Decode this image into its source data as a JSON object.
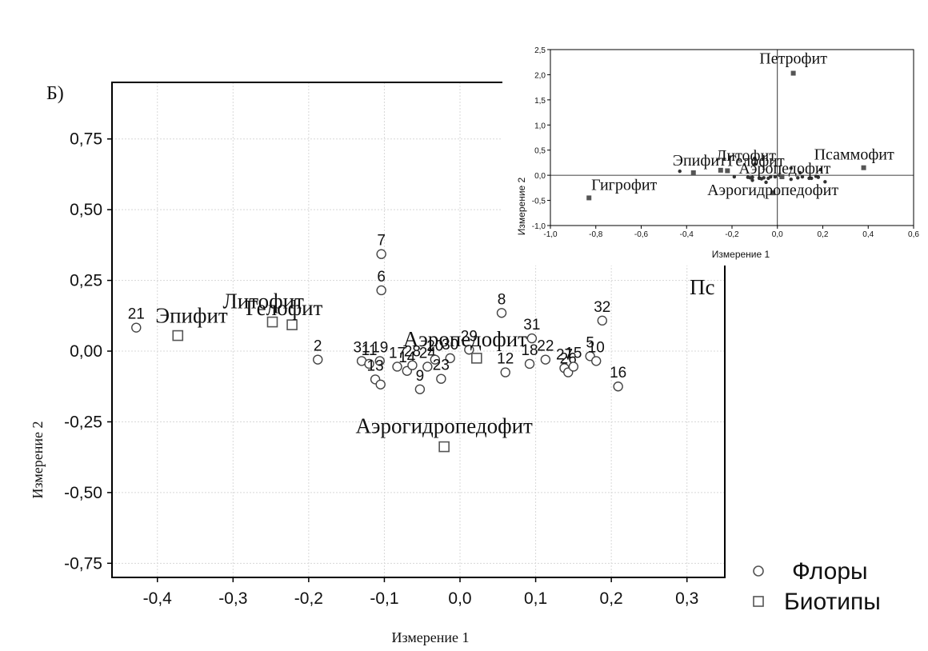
{
  "panel_label": "Б)",
  "main_chart": {
    "xlabel": "Измерение 1",
    "ylabel": "Измерение 2",
    "x_ticks": [
      {
        "v": -0.4,
        "label": "-0,4"
      },
      {
        "v": -0.3,
        "label": "-0,3"
      },
      {
        "v": -0.2,
        "label": "-0,2"
      },
      {
        "v": -0.1,
        "label": "-0,1"
      },
      {
        "v": 0.0,
        "label": "0,0"
      },
      {
        "v": 0.1,
        "label": "0,1"
      },
      {
        "v": 0.2,
        "label": "0,2"
      },
      {
        "v": 0.3,
        "label": "0,3"
      }
    ],
    "y_ticks": [
      {
        "v": 0.75,
        "label": "0,75"
      },
      {
        "v": 0.5,
        "label": "0,50"
      },
      {
        "v": 0.25,
        "label": "0,25"
      },
      {
        "v": 0.0,
        "label": "0,00"
      },
      {
        "v": -0.25,
        "label": "-0,25"
      },
      {
        "v": -0.5,
        "label": "-0,50"
      },
      {
        "v": -0.75,
        "label": "-0,75"
      }
    ],
    "legend": [
      {
        "label": "Флоры",
        "marker": "circle"
      },
      {
        "label": "Биотипы",
        "marker": "square"
      }
    ],
    "overflow_label": "Пс"
  },
  "chart_data": [
    {
      "type": "scatter",
      "xlabel": "Измерение 1",
      "ylabel": "Измерение 2",
      "xlim": [
        -0.46,
        0.35
      ],
      "ylim": [
        -0.8,
        0.95
      ],
      "grid": true,
      "legend_position": "bottom-right, outside plot",
      "series": [
        {
          "name": "Флоры",
          "marker": "circle",
          "points": [
            {
              "label": "21",
              "x": -0.428,
              "y": 0.083
            },
            {
              "label": "2",
              "x": -0.188,
              "y": -0.03
            },
            {
              "label": "31",
              "x": -0.13,
              "y": -0.035
            },
            {
              "label": "11",
              "x": -0.12,
              "y": -0.045
            },
            {
              "label": "19",
              "x": -0.106,
              "y": -0.035
            },
            {
              "label": "13",
              "x": -0.112,
              "y": -0.1
            },
            {
              "label": "",
              "x": -0.105,
              "y": -0.118
            },
            {
              "label": "7",
              "x": -0.104,
              "y": 0.343
            },
            {
              "label": "6",
              "x": -0.104,
              "y": 0.215
            },
            {
              "label": "17",
              "x": -0.083,
              "y": -0.055
            },
            {
              "label": "14",
              "x": -0.07,
              "y": -0.07
            },
            {
              "label": "28",
              "x": -0.063,
              "y": -0.05
            },
            {
              "label": "24",
              "x": -0.043,
              "y": -0.055
            },
            {
              "label": "9",
              "x": -0.053,
              "y": -0.135
            },
            {
              "label": "20",
              "x": -0.033,
              "y": -0.03
            },
            {
              "label": "30",
              "x": -0.013,
              "y": -0.025
            },
            {
              "label": "23",
              "x": -0.025,
              "y": -0.098
            },
            {
              "label": "29",
              "x": 0.012,
              "y": 0.005
            },
            {
              "label": "8",
              "x": 0.055,
              "y": 0.135
            },
            {
              "label": "12",
              "x": 0.06,
              "y": -0.075
            },
            {
              "label": "31",
              "x": 0.095,
              "y": 0.045
            },
            {
              "label": "18",
              "x": 0.092,
              "y": -0.045
            },
            {
              "label": "22",
              "x": 0.113,
              "y": -0.03
            },
            {
              "label": "27",
              "x": 0.138,
              "y": -0.06
            },
            {
              "label": "26",
              "x": 0.143,
              "y": -0.075
            },
            {
              "label": "15",
              "x": 0.15,
              "y": -0.055
            },
            {
              "label": "5",
              "x": 0.172,
              "y": -0.018
            },
            {
              "label": "10",
              "x": 0.18,
              "y": -0.035
            },
            {
              "label": "32",
              "x": 0.188,
              "y": 0.108
            },
            {
              "label": "16",
              "x": 0.209,
              "y": -0.125
            }
          ]
        },
        {
          "name": "Биотипы",
          "marker": "square",
          "points": [
            {
              "label": "Эпифит",
              "x": -0.373,
              "y": 0.055
            },
            {
              "label": "Литофит",
              "x": -0.248,
              "y": 0.103
            },
            {
              "label": "Гелофит",
              "x": -0.222,
              "y": 0.093
            },
            {
              "label": "Аэропедофит",
              "x": 0.022,
              "y": -0.025
            },
            {
              "label": "Аэрогидропедофит",
              "x": -0.021,
              "y": -0.338
            }
          ]
        }
      ]
    },
    {
      "type": "scatter",
      "xlabel": "Измерение 1",
      "ylabel": "Измерение 2",
      "xlim": [
        -1.0,
        0.6
      ],
      "ylim": [
        -1.0,
        2.5
      ],
      "grid": false,
      "x_ticks": [
        {
          "v": -1.0,
          "label": "-1,0"
        },
        {
          "v": -0.8,
          "label": "-0,8"
        },
        {
          "v": -0.6,
          "label": "-0,6"
        },
        {
          "v": -0.4,
          "label": "-0,4"
        },
        {
          "v": -0.2,
          "label": "-0,2"
        },
        {
          "v": 0.0,
          "label": "0,0"
        },
        {
          "v": 0.2,
          "label": "0,2"
        },
        {
          "v": 0.4,
          "label": "0,4"
        },
        {
          "v": 0.6,
          "label": "0,6"
        }
      ],
      "y_ticks": [
        {
          "v": 2.5,
          "label": "2,5"
        },
        {
          "v": 2.0,
          "label": "2,0"
        },
        {
          "v": 1.5,
          "label": "1,5"
        },
        {
          "v": 1.0,
          "label": "1,0"
        },
        {
          "v": 0.5,
          "label": "0,5"
        },
        {
          "v": 0.0,
          "label": "0,0"
        },
        {
          "v": -0.5,
          "label": "-0,5"
        },
        {
          "v": -1.0,
          "label": "-1,0"
        }
      ],
      "biotypes": [
        {
          "label": "Петрофит",
          "x": 0.07,
          "y": 2.03
        },
        {
          "label": "Псаммофит",
          "x": 0.38,
          "y": 0.15
        },
        {
          "label": "Гигрофит",
          "x": -0.83,
          "y": -0.45
        },
        {
          "label": "Эпифит",
          "x": -0.37,
          "y": 0.05
        },
        {
          "label": "Литофит",
          "x": -0.25,
          "y": 0.1
        },
        {
          "label": "Гелофит",
          "x": -0.22,
          "y": 0.09
        },
        {
          "label": "Аэропедофит",
          "x": 0.02,
          "y": -0.03
        },
        {
          "label": "Аэрогидропедофит",
          "x": -0.02,
          "y": -0.35
        }
      ],
      "floras": [
        {
          "x": -0.43,
          "y": 0.08
        },
        {
          "x": -0.19,
          "y": -0.03
        },
        {
          "x": -0.13,
          "y": -0.04
        },
        {
          "x": -0.12,
          "y": -0.05
        },
        {
          "x": -0.11,
          "y": -0.04
        },
        {
          "x": -0.11,
          "y": -0.1
        },
        {
          "x": -0.1,
          "y": 0.34
        },
        {
          "x": -0.1,
          "y": 0.22
        },
        {
          "x": -0.08,
          "y": -0.06
        },
        {
          "x": -0.07,
          "y": -0.07
        },
        {
          "x": -0.06,
          "y": -0.05
        },
        {
          "x": -0.04,
          "y": -0.06
        },
        {
          "x": -0.05,
          "y": -0.14
        },
        {
          "x": -0.03,
          "y": -0.03
        },
        {
          "x": -0.01,
          "y": -0.03
        },
        {
          "x": 0.01,
          "y": 0.0
        },
        {
          "x": 0.06,
          "y": 0.14
        },
        {
          "x": 0.06,
          "y": -0.08
        },
        {
          "x": 0.1,
          "y": 0.05
        },
        {
          "x": 0.09,
          "y": -0.05
        },
        {
          "x": 0.11,
          "y": -0.03
        },
        {
          "x": 0.14,
          "y": -0.06
        },
        {
          "x": 0.15,
          "y": -0.06
        },
        {
          "x": 0.17,
          "y": -0.02
        },
        {
          "x": 0.18,
          "y": -0.04
        },
        {
          "x": 0.19,
          "y": 0.11
        },
        {
          "x": 0.21,
          "y": -0.13
        }
      ]
    }
  ]
}
